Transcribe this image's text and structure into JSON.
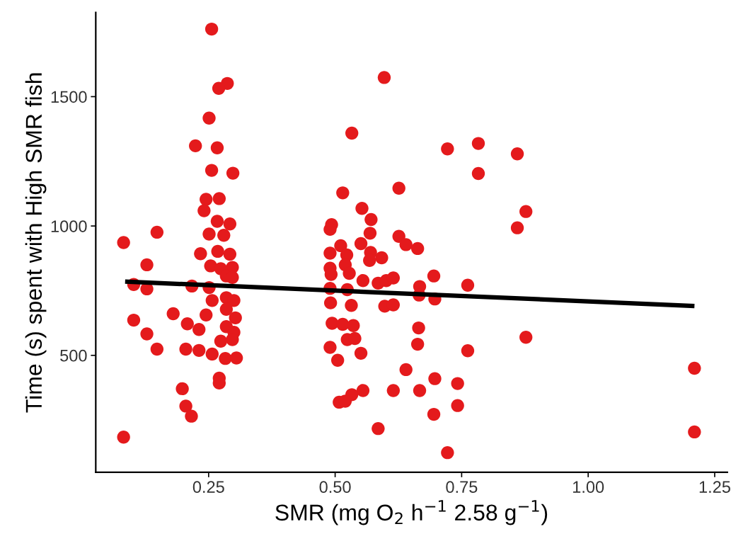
{
  "chart_data": {
    "type": "scatter",
    "xlabel": "SMR (mg O$_{2}$ h$^{−1}$ 2.58 g$^{−1}$)",
    "ylabel": "Time (s) spent with High SMR fish",
    "xlim": [
      0.027,
      1.275
    ],
    "ylim": [
      48,
      1825
    ],
    "xticks": [
      {
        "value": 0.25,
        "label": "0.25"
      },
      {
        "value": 0.5,
        "label": "0.50"
      },
      {
        "value": 0.75,
        "label": "0.75"
      },
      {
        "value": 1.0,
        "label": "1.00"
      },
      {
        "value": 1.25,
        "label": "1.25"
      }
    ],
    "yticks": [
      500,
      1000,
      1500
    ],
    "series": [
      {
        "color": "#e41a1c",
        "marker": "circle",
        "x": [
          0.256,
          0.287,
          0.27,
          0.251,
          0.224,
          0.267,
          0.256,
          0.298,
          0.245,
          0.271,
          0.241,
          0.267,
          0.292,
          0.251,
          0.28,
          0.082,
          0.148,
          0.234,
          0.268,
          0.292,
          0.254,
          0.297,
          0.274,
          0.128,
          0.102,
          0.128,
          0.217,
          0.251,
          0.285,
          0.297,
          0.257,
          0.285,
          0.3,
          0.18,
          0.245,
          0.285,
          0.303,
          0.102,
          0.208,
          0.231,
          0.285,
          0.3,
          0.128,
          0.274,
          0.297,
          0.148,
          0.205,
          0.231,
          0.257,
          0.283,
          0.305,
          0.271,
          0.271,
          0.198,
          0.205,
          0.216,
          0.082,
          0.597,
          0.533,
          0.722,
          0.515,
          0.626,
          0.553,
          0.571,
          0.493,
          0.49,
          0.569,
          0.551,
          0.626,
          0.64,
          0.663,
          0.49,
          0.511,
          0.523,
          0.57,
          0.592,
          0.568,
          0.49,
          0.492,
          0.52,
          0.528,
          0.555,
          0.585,
          0.601,
          0.615,
          0.695,
          0.667,
          0.666,
          0.697,
          0.49,
          0.524,
          0.491,
          0.532,
          0.598,
          0.615,
          0.494,
          0.515,
          0.536,
          0.524,
          0.539,
          0.665,
          0.663,
          0.49,
          0.505,
          0.551,
          0.64,
          0.697,
          0.742,
          0.615,
          0.667,
          0.555,
          0.533,
          0.508,
          0.52,
          0.695,
          0.742,
          0.585,
          0.722,
          0.783,
          0.86,
          0.783,
          0.877,
          0.86,
          0.877,
          1.21,
          1.21,
          0.762,
          0.762
        ],
        "values": [
          1761,
          1551,
          1532,
          1417,
          1310,
          1302,
          1215,
          1204,
          1103,
          1106,
          1059,
          1018,
          1008,
          969,
          964,
          936,
          976,
          893,
          902,
          891,
          846,
          840,
          835,
          850,
          774,
          757,
          768,
          762,
          807,
          801,
          712,
          723,
          712,
          661,
          656,
          678,
          645,
          636,
          622,
          600,
          611,
          589,
          583,
          555,
          561,
          524,
          524,
          519,
          505,
          488,
          490,
          412,
          393,
          371,
          304,
          265,
          184,
          1574,
          1359,
          1298,
          1128,
          1146,
          1068,
          1025,
          1005,
          987,
          972,
          932,
          960,
          928,
          913,
          895,
          924,
          888,
          898,
          877,
          867,
          837,
          813,
          850,
          817,
          789,
          779,
          789,
          799,
          807,
          766,
          733,
          718,
          759,
          754,
          703,
          693,
          690,
          695,
          624,
          620,
          615,
          561,
          565,
          606,
          543,
          531,
          481,
          508,
          445,
          410,
          391,
          364,
          364,
          364,
          348,
          319,
          323,
          272,
          306,
          217,
          124,
          1319,
          1279,
          1203,
          1056,
          993,
          570,
          450,
          204,
          771,
          518
        ]
      },
      {
        "type": "line",
        "color": "#000000",
        "line_style": "solid",
        "x": [
          0.085,
          1.21
        ],
        "values": [
          785,
          691
        ]
      }
    ]
  }
}
